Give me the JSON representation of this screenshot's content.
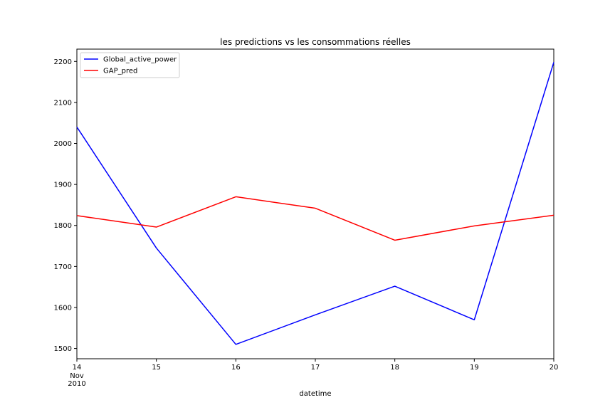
{
  "chart_data": {
    "type": "line",
    "title": "les predictions vs les consommations réelles",
    "xlabel": "datetime",
    "ylabel": "",
    "x": [
      "14",
      "15",
      "16",
      "17",
      "18",
      "19",
      "20"
    ],
    "x_sub_labels": [
      "Nov",
      "2010"
    ],
    "ylim": [
      1475,
      2230
    ],
    "yticks": [
      1500,
      1600,
      1700,
      1800,
      1900,
      2000,
      2100,
      2200
    ],
    "grid": false,
    "legend_position": "top-left",
    "series": [
      {
        "name": "Global_active_power",
        "color": "#0000ff",
        "values": [
          2040,
          1745,
          1510,
          1582,
          1652,
          1570,
          2198
        ]
      },
      {
        "name": "GAP_pred",
        "color": "#ff0000",
        "values": [
          1824,
          1796,
          1870,
          1842,
          1764,
          1799,
          1825
        ]
      }
    ]
  }
}
